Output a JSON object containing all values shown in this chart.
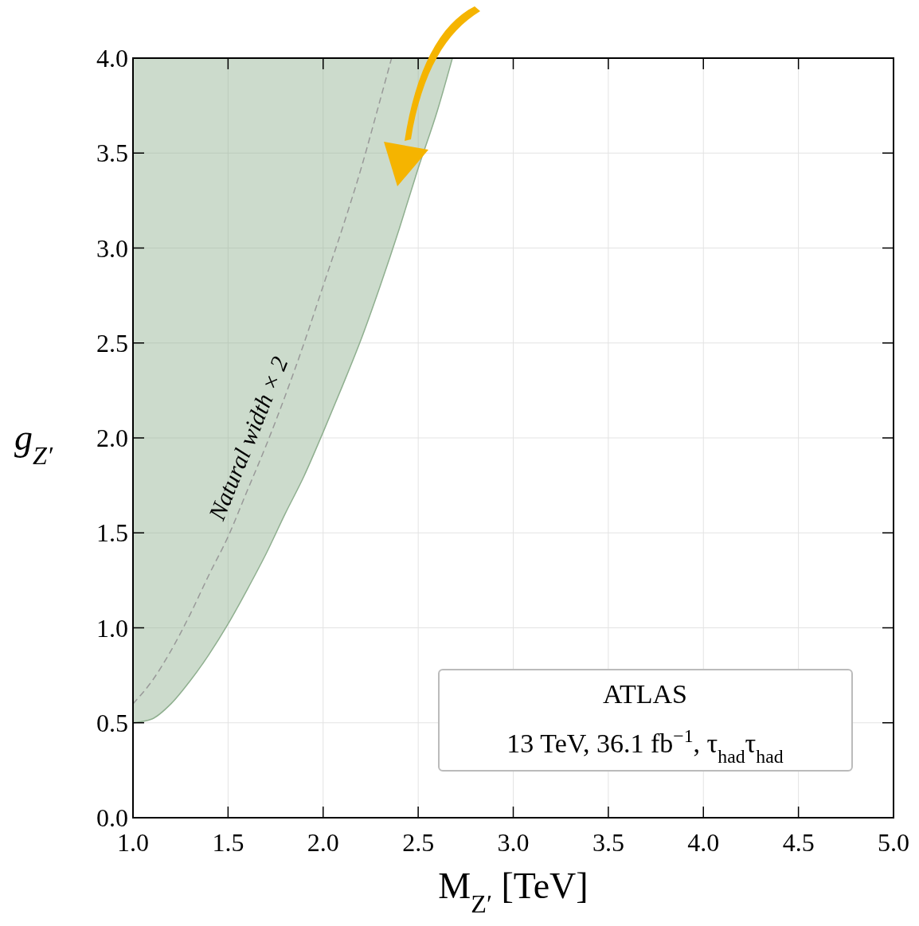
{
  "chart_data": {
    "type": "line",
    "xlabel": "M$_{Z′}$ [TeV]",
    "ylabel": "g$_{Z′}$",
    "xlim": [
      1.0,
      5.0
    ],
    "ylim": [
      0.0,
      4.0
    ],
    "xticks": [
      {
        "value": 1,
        "label": "1.0"
      },
      1.5,
      {
        "value": 2,
        "label": "2.0"
      },
      2.5,
      {
        "value": 3,
        "label": "3.0"
      },
      3.5,
      {
        "value": 4,
        "label": "4.0"
      },
      4.5,
      {
        "value": 5,
        "label": "5.0"
      }
    ],
    "yticks": [
      {
        "value": 0,
        "label": "0.0"
      },
      0.5,
      {
        "value": 1,
        "label": "1.0"
      },
      1.5,
      {
        "value": 2,
        "label": "2.0"
      },
      2.5,
      {
        "value": 3,
        "label": "3.0"
      },
      3.5,
      {
        "value": 4,
        "label": "4.0"
      }
    ],
    "grid": true,
    "series": [
      {
        "color": "#8faf8f",
        "line_style": "solid",
        "x": [
          1.0,
          1.1,
          1.2,
          1.3,
          1.4,
          1.5,
          1.6,
          1.7,
          1.8,
          1.9,
          2.0,
          2.1,
          2.2,
          2.3,
          2.4,
          2.5,
          2.6,
          2.68
        ],
        "values": [
          0.5,
          0.52,
          0.6,
          0.72,
          0.86,
          1.02,
          1.2,
          1.39,
          1.6,
          1.8,
          2.03,
          2.27,
          2.52,
          2.8,
          3.1,
          3.42,
          3.72,
          4.0
        ],
        "lower": [
          0.5,
          0.52,
          0.6,
          0.72,
          0.86,
          1.02,
          1.2,
          1.39,
          1.6,
          1.8,
          2.03,
          2.27,
          2.52,
          2.8,
          3.1,
          3.42,
          3.72,
          4.0
        ],
        "upper": [
          4.0,
          4.0,
          4.0,
          4.0,
          4.0,
          4.0,
          4.0,
          4.0,
          4.0,
          4.0,
          4.0,
          4.0,
          4.0,
          4.0,
          4.0,
          4.0,
          4.0,
          4.0
        ]
      },
      {
        "name": "Natural width × 2",
        "color": "#999999",
        "line_style": "dashed",
        "x": [
          1.0,
          1.1,
          1.2,
          1.3,
          1.4,
          1.5,
          1.6,
          1.7,
          1.8,
          1.9,
          2.0,
          2.1,
          2.2,
          2.3,
          2.36
        ],
        "values": [
          0.6,
          0.72,
          0.88,
          1.07,
          1.28,
          1.48,
          1.72,
          1.96,
          2.22,
          2.5,
          2.8,
          3.1,
          3.42,
          3.78,
          4.0
        ]
      }
    ],
    "annotations": [
      "ATLAS",
      "13 TeV, 36.1 fb$^{−1}$, τ$_{had}$τ$_{had}$"
    ]
  }
}
